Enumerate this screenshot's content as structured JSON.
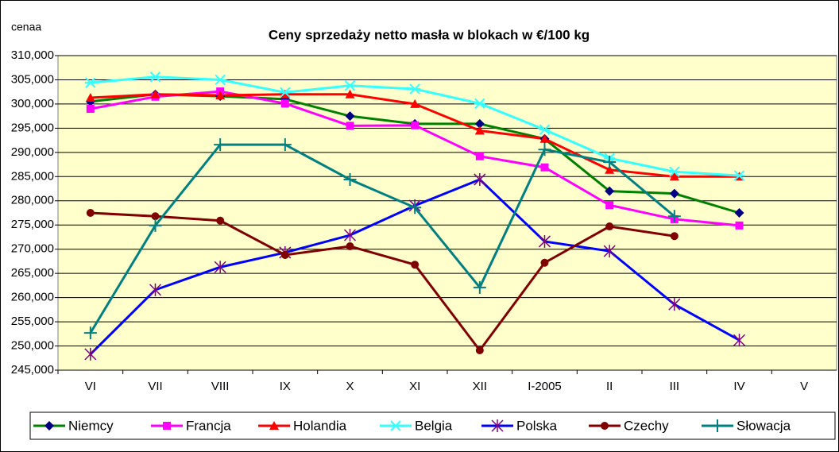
{
  "chart_data": {
    "type": "line",
    "title": "Ceny sprzedaży netto masła w blokach w €/100 kg",
    "y_label": "cenaa",
    "background": "#ffffcc",
    "grid": true,
    "legend": "bottom",
    "categories": [
      "VI",
      "VII",
      "VIII",
      "IX",
      "X",
      "XI",
      "XII",
      "I-2005",
      "II",
      "III",
      "IV",
      "V"
    ],
    "ylim": [
      245000,
      310000
    ],
    "yticks": [
      {
        "value": 245000,
        "label": "245,000"
      },
      {
        "value": 250000,
        "label": "250,000"
      },
      {
        "value": 255000,
        "label": "255,000"
      },
      {
        "value": 260000,
        "label": "260,000"
      },
      {
        "value": 265000,
        "label": "265,000"
      },
      {
        "value": 270000,
        "label": "270,000"
      },
      {
        "value": 275000,
        "label": "275,000"
      },
      {
        "value": 280000,
        "label": "280,000"
      },
      {
        "value": 285000,
        "label": "285,000"
      },
      {
        "value": 290000,
        "label": "290,000"
      },
      {
        "value": 295000,
        "label": "295,000"
      },
      {
        "value": 300000,
        "label": "300,000"
      },
      {
        "value": 305000,
        "label": "305,000"
      },
      {
        "value": 310000,
        "label": "310,000"
      }
    ],
    "series": [
      {
        "name": "Niemcy",
        "color": "#008000",
        "marker_color": "#000080",
        "marker": "diamond",
        "values": [
          300500,
          302000,
          301600,
          301000,
          297500,
          295900,
          295900,
          292800,
          282000,
          281500,
          277500,
          null
        ]
      },
      {
        "name": "Francja",
        "color": "#ff00ff",
        "marker_color": "#ff00ff",
        "marker": "square",
        "values": [
          299000,
          301500,
          302600,
          300100,
          295500,
          295600,
          289200,
          286900,
          279100,
          276200,
          274900,
          null
        ]
      },
      {
        "name": "Holandia",
        "color": "#ff0000",
        "marker_color": "#ff0000",
        "marker": "triangle",
        "values": [
          301300,
          302000,
          301800,
          302000,
          302000,
          300000,
          294500,
          292800,
          286400,
          285000,
          285000,
          null
        ]
      },
      {
        "name": "Belgia",
        "color": "#33ffff",
        "marker_color": "#33ffff",
        "marker": "star",
        "values": [
          304400,
          305600,
          305000,
          302400,
          303800,
          303100,
          300100,
          294700,
          288800,
          286000,
          285200,
          null
        ]
      },
      {
        "name": "Polska",
        "color": "#0000ff",
        "marker_color": "#800080",
        "marker": "asterisk",
        "values": [
          248300,
          261600,
          266300,
          269300,
          272900,
          279000,
          284400,
          271600,
          269600,
          258600,
          251200,
          null
        ]
      },
      {
        "name": "Czechy",
        "color": "#800000",
        "marker_color": "#800000",
        "marker": "circle",
        "values": [
          277500,
          276800,
          275900,
          268800,
          270600,
          266800,
          249100,
          267200,
          274700,
          272700,
          null,
          null
        ]
      },
      {
        "name": "Słowacja",
        "color": "#008080",
        "marker_color": "#008080",
        "marker": "plus",
        "values": [
          252700,
          274900,
          291600,
          291600,
          284400,
          278600,
          262100,
          290600,
          288000,
          276800,
          null,
          null
        ]
      }
    ]
  }
}
